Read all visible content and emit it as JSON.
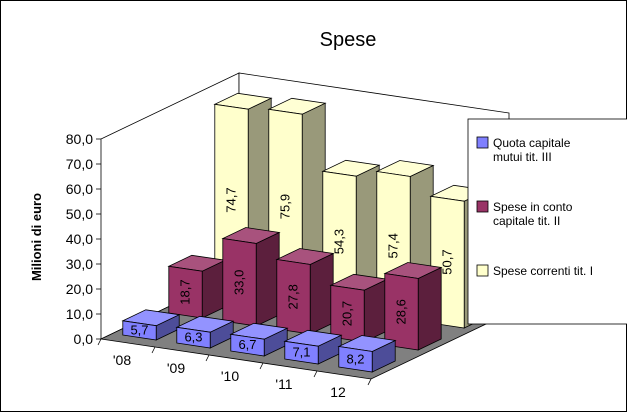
{
  "chart_data": {
    "type": "bar",
    "title": "Spese",
    "xlabel": "",
    "ylabel": "Milioni di euro",
    "categories": [
      "'08",
      "'09",
      "'10",
      "'11",
      "12"
    ],
    "y_ticks": [
      "0,0",
      "10,0",
      "20,0",
      "30,0",
      "40,0",
      "50,0",
      "60,0",
      "70,0",
      "80,0"
    ],
    "ylim": [
      0,
      80
    ],
    "grid": false,
    "legend_position": "right",
    "series": [
      {
        "name": "Quota capitale mutui tit. III",
        "color": "#8080ff",
        "values": [
          5.7,
          6.3,
          6.7,
          7.1,
          8.2
        ],
        "labels": [
          "5,7",
          "6,3",
          "6,7",
          "7,1",
          "8,2"
        ]
      },
      {
        "name": "Spese in conto capitale tit. II",
        "color": "#993366",
        "values": [
          18.7,
          33.0,
          27.8,
          20.7,
          28.6
        ],
        "labels": [
          "18,7",
          "33,0",
          "27,8",
          "20,7",
          "28,6"
        ]
      },
      {
        "name": "Spese correnti tit. I",
        "color": "#ffffcc",
        "values": [
          74.7,
          75.9,
          54.3,
          57.4,
          50.7
        ],
        "labels": [
          "74,7",
          "75,9",
          "54,3",
          "57,4",
          "50,7"
        ]
      }
    ],
    "legend_entries": [
      {
        "lines": [
          "Quota capitale",
          "mutui tit. III"
        ],
        "color": "#8080ff"
      },
      {
        "lines": [
          "Spese in conto",
          "capitale tit. II"
        ],
        "color": "#993366"
      },
      {
        "lines": [
          "Spese correnti tit. I"
        ],
        "color": "#ffffcc"
      }
    ]
  }
}
